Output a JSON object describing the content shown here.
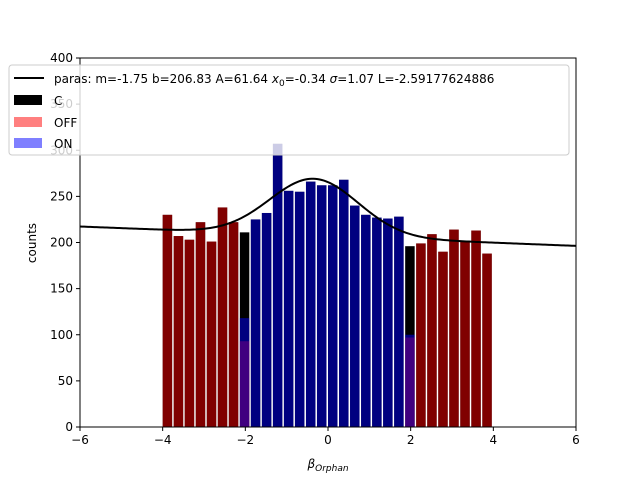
{
  "chart_data": {
    "type": "bar",
    "xlabel_base": "β",
    "xlabel_sub": "Orphan",
    "ylabel": "counts",
    "xlim": [
      -6,
      6
    ],
    "ylim": [
      0,
      400
    ],
    "xticks": [
      -6,
      -4,
      -2,
      0,
      2,
      4,
      6
    ],
    "xtick_labels": [
      "−6",
      "−4",
      "−2",
      "0",
      "2",
      "4",
      "6"
    ],
    "yticks": [
      0,
      50,
      100,
      150,
      200,
      250,
      300,
      350,
      400
    ],
    "yticks_labels": [
      "0",
      "50",
      "100",
      "150",
      "200",
      "250",
      "300",
      "350",
      "400"
    ],
    "bin_width": 0.267,
    "bins_left": [
      -4.0,
      -3.733,
      -3.467,
      -3.2,
      -2.933,
      -2.667,
      -2.4,
      -2.133,
      -1.867,
      -1.6,
      -1.333,
      -1.067,
      -0.8,
      -0.533,
      -0.267,
      0.0,
      0.267,
      0.533,
      0.8,
      1.067,
      1.333,
      1.6,
      1.867,
      2.133,
      2.4,
      2.667,
      2.933,
      3.2,
      3.467,
      3.733
    ],
    "series": [
      {
        "name": "C",
        "color": "#000000",
        "alpha": 1.0,
        "values": [
          230,
          207,
          203,
          222,
          201,
          238,
          222,
          211,
          225,
          232,
          307,
          256,
          255,
          266,
          262,
          262,
          268,
          240,
          230,
          227,
          226,
          228,
          196,
          199,
          209,
          190,
          214,
          202,
          213,
          188
        ]
      },
      {
        "name": "OFF",
        "color": "#ff0000",
        "alpha": 0.5,
        "values": [
          230,
          207,
          203,
          222,
          201,
          238,
          222,
          0,
          0,
          0,
          0,
          0,
          0,
          0,
          0,
          0,
          0,
          0,
          0,
          0,
          0,
          0,
          0,
          199,
          209,
          190,
          214,
          202,
          213,
          188
        ]
      },
      {
        "name": "ON",
        "color": "#0000ff",
        "alpha": 0.5,
        "values": [
          0,
          0,
          0,
          0,
          0,
          0,
          0,
          118,
          225,
          232,
          307,
          256,
          255,
          266,
          262,
          262,
          268,
          240,
          230,
          227,
          226,
          228,
          100,
          0,
          0,
          0,
          0,
          0,
          0,
          0
        ]
      }
    ],
    "off_low_values": {
      "7": 93,
      "22": 97
    },
    "fit": {
      "label_prefix": "paras: m=-1.75 b=206.83 A=61.64 ",
      "label_x0": "x",
      "label_x0_sub": "0",
      "label_mid": "=-0.34 ",
      "label_sigma": "σ",
      "label_end": "=1.07 L=-2.59177624886",
      "m": -1.75,
      "b": 206.83,
      "A": 61.64,
      "x0": -0.34,
      "sigma": 1.07,
      "color": "#000000"
    },
    "legend_location": "upper-left"
  }
}
